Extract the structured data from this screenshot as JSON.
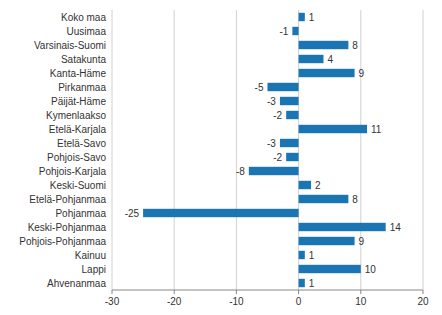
{
  "chart_data": {
    "type": "bar",
    "orientation": "horizontal",
    "categories": [
      "Koko maa",
      "Uusimaa",
      "Varsinais-Suomi",
      "Satakunta",
      "Kanta-Häme",
      "Pirkanmaa",
      "Päijät-Häme",
      "Kymenlaakso",
      "Etelä-Karjala",
      "Etelä-Savo",
      "Pohjois-Savo",
      "Pohjois-Karjala",
      "Keski-Suomi",
      "Etelä-Pohjanmaa",
      "Pohjanmaa",
      "Keski-Pohjanmaa",
      "Pohjois-Pohjanmaa",
      "Kainuu",
      "Lappi",
      "Ahvenanmaa"
    ],
    "values": [
      1,
      -1,
      8,
      4,
      9,
      -5,
      -3,
      -2,
      11,
      -3,
      -2,
      -8,
      2,
      8,
      -25,
      14,
      9,
      1,
      10,
      1
    ],
    "color": "#1b75b3",
    "xlim": [
      -30,
      20
    ],
    "xticks": [
      -30,
      -20,
      -10,
      0,
      10,
      20
    ],
    "grid": true,
    "data_labels": true
  }
}
